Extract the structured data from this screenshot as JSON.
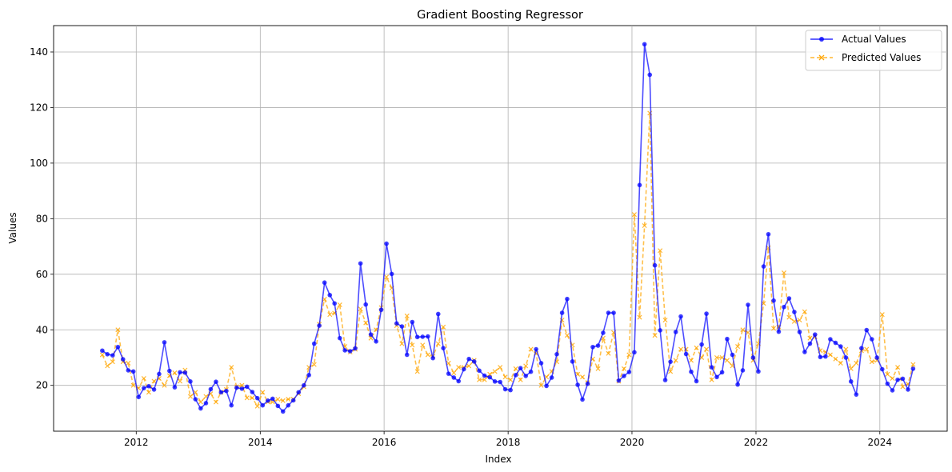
{
  "chart_data": {
    "type": "line",
    "title": "Gradient Boosting Regressor",
    "xlabel": "Index",
    "ylabel": "Values",
    "xlim": [
      "2010-09-01",
      "2025-02-01"
    ],
    "ylim": [
      3.5,
      149.5
    ],
    "x_ticks": [
      "2012-01-01",
      "2014-01-01",
      "2016-01-01",
      "2018-01-01",
      "2020-01-01",
      "2022-01-01",
      "2024-01-01"
    ],
    "x_tick_labels": [
      "2012",
      "2014",
      "2016",
      "2018",
      "2020",
      "2022",
      "2024"
    ],
    "y_ticks": [
      20,
      40,
      60,
      80,
      100,
      120,
      140
    ],
    "y_tick_labels": [
      "20",
      "40",
      "60",
      "80",
      "100",
      "120",
      "140"
    ],
    "grid": true,
    "legend_position": "top-right",
    "start_month": "2011-06",
    "series": [
      {
        "name": "Actual Values",
        "color": "#0000ff",
        "line_style": "solid",
        "marker": "circle",
        "values": [
          32.5,
          31.2,
          30.8,
          33.8,
          29.4,
          25.4,
          25.0,
          15.8,
          19.0,
          19.7,
          18.5,
          24.1,
          35.5,
          25.2,
          19.3,
          24.7,
          24.6,
          21.4,
          15.0,
          11.7,
          13.6,
          18.6,
          21.3,
          17.5,
          18.0,
          12.8,
          19.2,
          18.8,
          19.5,
          17.6,
          15.4,
          12.8,
          14.5,
          15.2,
          12.6,
          10.6,
          12.8,
          14.6,
          17.5,
          20.0,
          23.7,
          35.0,
          41.5,
          57.0,
          52.5,
          49.5,
          37.0,
          32.6,
          32.3,
          33.3,
          63.9,
          49.1,
          38.3,
          35.8,
          47.2,
          71.0,
          60.1,
          42.3,
          41.2,
          31.0,
          42.8,
          37.4,
          37.5,
          37.6,
          29.8,
          45.7,
          33.4,
          24.2,
          22.8,
          21.5,
          25.8,
          29.5,
          28.6,
          25.3,
          23.5,
          22.9,
          21.4,
          21.2,
          18.6,
          18.3,
          23.7,
          26.2,
          23.4,
          24.9,
          33.0,
          28.0,
          19.8,
          22.8,
          31.2,
          46.1,
          51.1,
          28.6,
          20.2,
          14.9,
          20.6,
          33.8,
          34.3,
          38.9,
          46.1,
          46.1,
          21.7,
          23.4,
          24.8,
          31.9,
          92.1,
          142.8,
          131.8,
          63.2,
          39.8,
          21.9,
          28.5,
          39.2,
          44.8,
          31.3,
          24.9,
          21.5,
          34.7,
          45.8,
          26.5,
          23.0,
          24.7,
          36.7,
          31.0,
          20.3,
          25.4,
          49.0,
          30.0,
          25.0,
          62.8,
          74.4,
          50.5,
          39.3,
          48.2,
          51.3,
          46.4,
          39.2,
          32.0,
          35.0,
          38.3,
          30.2,
          30.4,
          36.6,
          35.3,
          34.0,
          30.0,
          21.4,
          16.7,
          33.4,
          39.9,
          36.6,
          30.0,
          25.8,
          20.6,
          18.2,
          22.0,
          22.4,
          18.5,
          26.0
        ]
      },
      {
        "name": "Predicted Values",
        "color": "#ffa500",
        "line_style": "dashed",
        "marker": "x",
        "values": [
          31.0,
          27.0,
          28.5,
          40.0,
          28.5,
          28.0,
          20.0,
          19.0,
          22.5,
          17.5,
          21.5,
          22.5,
          20.0,
          23.5,
          24.5,
          21.5,
          25.5,
          16.0,
          17.5,
          14.0,
          16.0,
          17.0,
          14.0,
          17.5,
          18.5,
          26.5,
          19.5,
          20.0,
          15.5,
          15.5,
          12.5,
          17.5,
          14.0,
          14.0,
          15.0,
          14.5,
          15.0,
          15.0,
          17.0,
          19.5,
          26.5,
          27.5,
          42.0,
          51.0,
          45.5,
          46.0,
          49.0,
          34.0,
          32.0,
          33.0,
          47.5,
          42.5,
          37.0,
          40.0,
          48.0,
          59.0,
          55.0,
          41.5,
          35.0,
          45.0,
          34.5,
          25.0,
          34.5,
          31.0,
          30.5,
          35.0,
          41.0,
          28.0,
          24.5,
          26.5,
          26.5,
          27.0,
          29.0,
          22.0,
          22.0,
          24.0,
          25.0,
          26.5,
          23.0,
          22.0,
          26.0,
          22.0,
          27.0,
          33.0,
          31.5,
          20.0,
          23.0,
          25.0,
          28.5,
          43.5,
          38.0,
          34.5,
          24.0,
          23.0,
          21.0,
          29.5,
          26.0,
          37.0,
          31.5,
          39.0,
          21.5,
          26.0,
          31.0,
          81.5,
          44.5,
          77.5,
          118.0,
          38.0,
          68.5,
          43.5,
          25.0,
          29.0,
          33.0,
          33.0,
          29.0,
          33.5,
          30.0,
          33.0,
          22.0,
          30.0,
          30.0,
          29.0,
          27.0,
          34.0,
          40.0,
          39.0,
          29.0,
          35.0,
          49.5,
          69.5,
          40.5,
          41.0,
          60.5,
          44.5,
          43.0,
          43.5,
          46.5,
          37.0,
          37.5,
          32.5,
          32.0,
          31.0,
          29.5,
          28.0,
          33.0,
          26.0,
          28.0,
          32.5,
          33.0,
          28.5,
          29.0,
          45.5,
          24.0,
          22.5,
          26.5,
          19.5,
          20.5,
          27.5
        ]
      }
    ]
  }
}
